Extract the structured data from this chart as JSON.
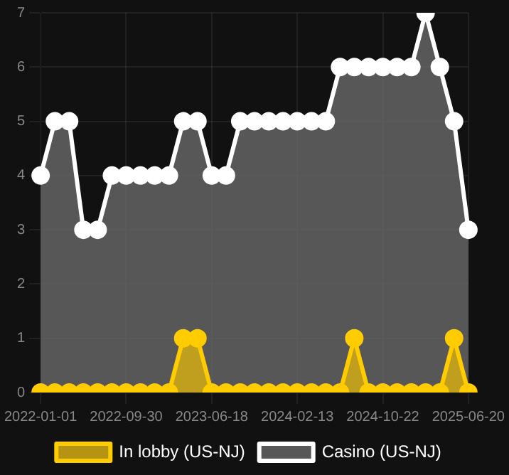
{
  "chart_data": {
    "type": "area",
    "categories": [
      "2022-01-01",
      null,
      null,
      null,
      null,
      null,
      "2022-09-30",
      null,
      null,
      null,
      null,
      null,
      "2023-06-18",
      null,
      null,
      null,
      null,
      null,
      "2024-02-13",
      null,
      null,
      null,
      null,
      null,
      "2024-10-22",
      null,
      null,
      null,
      null,
      null,
      "2025-06-20"
    ],
    "series": [
      {
        "name": "In lobby (US-NJ)",
        "color": "#ffcc00",
        "values": [
          0,
          0,
          0,
          0,
          0,
          0,
          0,
          0,
          0,
          0,
          1,
          1,
          0,
          0,
          0,
          0,
          0,
          0,
          0,
          0,
          0,
          0,
          1,
          0,
          0,
          0,
          0,
          0,
          0,
          1,
          0
        ]
      },
      {
        "name": "Casino (US-NJ)",
        "color": "#ffffff",
        "values": [
          4,
          5,
          5,
          3,
          3,
          4,
          4,
          4,
          4,
          4,
          5,
          5,
          4,
          4,
          5,
          5,
          5,
          5,
          5,
          5,
          5,
          6,
          6,
          6,
          6,
          6,
          6,
          7,
          6,
          5,
          3
        ]
      }
    ],
    "ylim": [
      0,
      7
    ],
    "yticks": [
      0,
      1,
      2,
      3,
      4,
      5,
      6,
      7
    ],
    "grid": true,
    "legend": "bottom",
    "marker": "circle"
  }
}
